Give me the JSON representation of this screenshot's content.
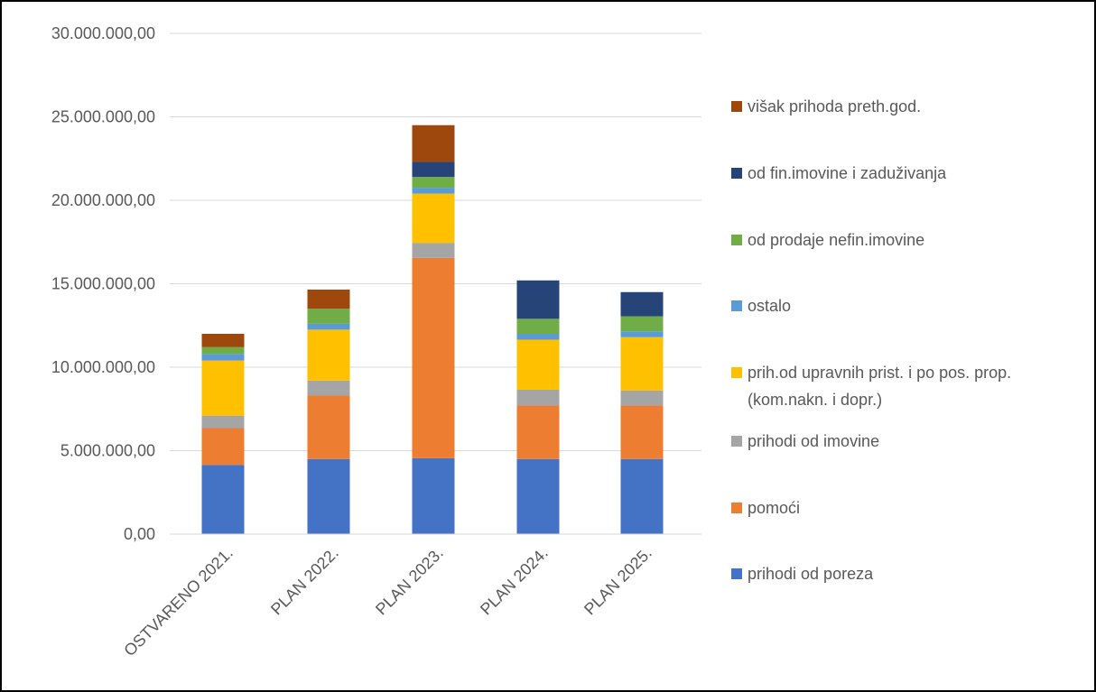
{
  "chart_data": {
    "type": "bar",
    "stacked": true,
    "categories": [
      "OSTVARENO 2021.",
      "PLAN 2022.",
      "PLAN 2023.",
      "PLAN 2024.",
      "PLAN 2025."
    ],
    "ylim": [
      0,
      30000000
    ],
    "yticks": [
      {
        "value": 0,
        "label": "0,00"
      },
      {
        "value": 5000000,
        "label": "5.000.000,00"
      },
      {
        "value": 10000000,
        "label": "10.000.000,00"
      },
      {
        "value": 15000000,
        "label": "15.000.000,00"
      },
      {
        "value": 20000000,
        "label": "20.000.000,00"
      },
      {
        "value": 25000000,
        "label": "25.000.000,00"
      },
      {
        "value": 30000000,
        "label": "30.000.000,00"
      }
    ],
    "grid": true,
    "legend_position": "right",
    "series": [
      {
        "name": "prihodi od poreza",
        "color": "#4472C4",
        "values": [
          4150000,
          4500000,
          4550000,
          4500000,
          4500000
        ]
      },
      {
        "name": "pomoći",
        "color": "#ED7D31",
        "values": [
          2200000,
          3800000,
          12000000,
          3200000,
          3200000
        ]
      },
      {
        "name": "prihodi od imovine",
        "color": "#A5A5A5",
        "values": [
          750000,
          900000,
          900000,
          950000,
          900000
        ]
      },
      {
        "name": "prih.od upravnih prist. i po pos. prop. (kom.nakn. i dopr.)",
        "color": "#FFC000",
        "values": [
          3300000,
          3050000,
          2950000,
          3000000,
          3200000
        ]
      },
      {
        "name": "ostalo",
        "color": "#5B9BD5",
        "values": [
          400000,
          350000,
          350000,
          350000,
          350000
        ]
      },
      {
        "name": "od prodaje nefin.imovine",
        "color": "#70AD47",
        "values": [
          400000,
          900000,
          650000,
          900000,
          900000
        ]
      },
      {
        "name": "od fin.imovine i zaduživanja",
        "color": "#264478",
        "values": [
          0,
          0,
          900000,
          2300000,
          1450000
        ]
      },
      {
        "name": "višak prihoda preth.god.",
        "color": "#9E480E",
        "values": [
          800000,
          1150000,
          2200000,
          0,
          0
        ]
      }
    ]
  }
}
